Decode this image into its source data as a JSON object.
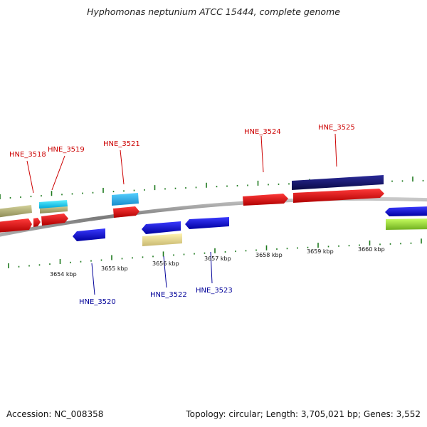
{
  "title": "Hyphomonas neptunium ATCC 15444, complete genome",
  "footer": {
    "accession": "Accession: NC_008358",
    "summary": "Topology: circular; Length: 3,705,021 bp; Genes: 3,552"
  },
  "colors": {
    "forward_label": "#cc0000",
    "reverse_label": "#000099",
    "tick": "#1e7a1e",
    "backbone": "#8a8a8a"
  },
  "scale_labels": [
    "3654 kbp",
    "3655 kbp",
    "3656 kbp",
    "3657 kbp",
    "3658 kbp",
    "3659 kbp",
    "3660 kbp"
  ],
  "gene_labels": {
    "forward": [
      "HNE_3518",
      "HNE_3519",
      "HNE_3521",
      "HNE_3524",
      "HNE_3525"
    ],
    "reverse": [
      "HNE_3520",
      "HNE_3522",
      "HNE_3523"
    ]
  }
}
